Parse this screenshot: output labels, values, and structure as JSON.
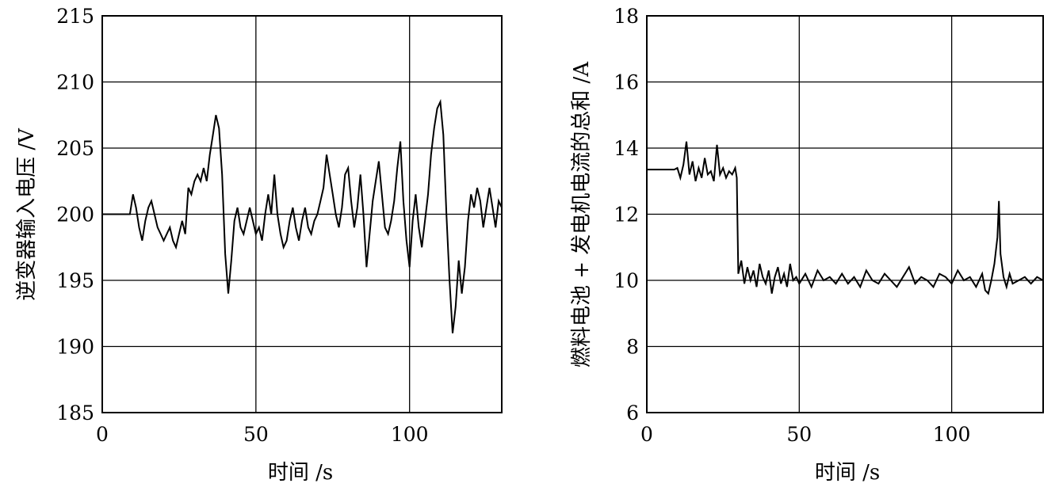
{
  "chart_data": [
    {
      "type": "line",
      "xlabel": "时间 /s",
      "ylabel": "逆变器输入电压 /V",
      "xlim": [
        0,
        130
      ],
      "ylim": [
        185,
        215
      ],
      "xticks": [
        0,
        50,
        100
      ],
      "yticks": [
        185,
        190,
        195,
        200,
        205,
        210,
        215
      ],
      "grid": true,
      "series": [
        {
          "x": [
            0,
            9,
            10,
            11,
            12,
            13,
            14,
            15,
            16,
            17,
            18,
            19,
            20,
            21,
            22,
            23,
            24,
            25,
            26,
            27,
            28,
            29,
            30,
            31,
            32,
            33,
            34,
            35,
            36,
            37,
            38,
            39,
            40,
            41,
            42,
            43,
            44,
            45,
            46,
            47,
            48,
            49,
            50,
            51,
            52,
            53,
            54,
            55,
            56,
            57,
            58,
            59,
            60,
            61,
            62,
            63,
            64,
            65,
            66,
            67,
            68,
            69,
            70,
            71,
            72,
            73,
            74,
            75,
            76,
            77,
            78,
            79,
            80,
            81,
            82,
            83,
            84,
            85,
            86,
            87,
            88,
            89,
            90,
            91,
            92,
            93,
            94,
            95,
            96,
            97,
            98,
            99,
            100,
            101,
            102,
            103,
            104,
            105,
            106,
            107,
            108,
            109,
            110,
            111,
            112,
            113,
            114,
            115,
            116,
            117,
            118,
            119,
            120,
            121,
            122,
            123,
            124,
            125,
            126,
            127,
            128,
            129,
            130
          ],
          "y": [
            200,
            200,
            201.5,
            200.5,
            199,
            198,
            199.5,
            200.5,
            201,
            200,
            199,
            198.5,
            198,
            198.5,
            199,
            198,
            197.5,
            198.5,
            199.5,
            198.5,
            202,
            201.5,
            202.5,
            203,
            202.5,
            203.5,
            202.5,
            204.5,
            206,
            207.5,
            206.5,
            203,
            197,
            194,
            196.5,
            199.5,
            200.5,
            199,
            198.5,
            199.5,
            200.5,
            199.5,
            198.5,
            199,
            198,
            200,
            201.5,
            200,
            203,
            200,
            198.5,
            197.5,
            198,
            199.5,
            200.5,
            199,
            198,
            199.5,
            200.5,
            199,
            198.5,
            199.5,
            200,
            201,
            202,
            204.5,
            203,
            201.5,
            200,
            199,
            200.5,
            203,
            203.5,
            201,
            199,
            200.5,
            203,
            200,
            196,
            198.5,
            201,
            202.5,
            204,
            201.5,
            199,
            198.5,
            199.5,
            201,
            203.5,
            205.5,
            201,
            198,
            196,
            199.5,
            201.5,
            199,
            197.5,
            199.5,
            201.5,
            204.5,
            206.5,
            208,
            208.5,
            206,
            200,
            195,
            191,
            193,
            196.5,
            194,
            196,
            199.5,
            201.5,
            200.5,
            202,
            201,
            199,
            200.5,
            202,
            200.5,
            199,
            201,
            200.5
          ]
        }
      ]
    },
    {
      "type": "line",
      "xlabel": "时间 /s",
      "ylabel": "燃料电池 + 发电机电流的总和 /A",
      "xlim": [
        0,
        130
      ],
      "ylim": [
        6,
        18
      ],
      "xticks": [
        0,
        50,
        100
      ],
      "yticks": [
        6,
        8,
        10,
        12,
        14,
        16,
        18
      ],
      "grid": true,
      "series": [
        {
          "x": [
            0,
            9,
            10,
            11,
            12,
            13,
            14,
            15,
            16,
            17,
            18,
            19,
            20,
            21,
            22,
            23,
            24,
            25,
            26,
            27,
            28,
            29,
            29.5,
            30,
            31,
            32,
            33,
            34,
            35,
            36,
            37,
            38,
            39,
            40,
            41,
            42,
            43,
            44,
            45,
            46,
            47,
            48,
            49,
            50,
            52,
            54,
            56,
            58,
            60,
            62,
            64,
            66,
            68,
            70,
            72,
            74,
            76,
            78,
            80,
            82,
            84,
            86,
            88,
            90,
            92,
            94,
            96,
            98,
            100,
            102,
            104,
            106,
            108,
            110,
            111,
            112,
            113,
            114,
            115,
            115.5,
            116,
            117,
            118,
            119,
            120,
            122,
            124,
            126,
            128,
            130
          ],
          "y": [
            13.35,
            13.35,
            13.4,
            13.1,
            13.5,
            14.2,
            13.2,
            13.6,
            13.0,
            13.4,
            13.1,
            13.7,
            13.2,
            13.3,
            13.0,
            14.1,
            13.2,
            13.4,
            13.1,
            13.3,
            13.2,
            13.4,
            13.1,
            10.2,
            10.6,
            9.9,
            10.4,
            10.0,
            10.3,
            9.8,
            10.5,
            10.1,
            9.9,
            10.3,
            9.6,
            10.1,
            10.4,
            9.9,
            10.2,
            9.8,
            10.5,
            10.0,
            10.1,
            9.9,
            10.2,
            9.8,
            10.3,
            10.0,
            10.1,
            9.9,
            10.2,
            9.9,
            10.1,
            9.8,
            10.3,
            10.0,
            9.9,
            10.2,
            10.0,
            9.8,
            10.1,
            10.4,
            9.9,
            10.1,
            10.0,
            9.8,
            10.2,
            10.1,
            9.9,
            10.3,
            10.0,
            10.1,
            9.8,
            10.2,
            9.7,
            9.6,
            10.0,
            10.5,
            11.3,
            12.4,
            10.8,
            10.1,
            9.8,
            10.2,
            9.9,
            10.0,
            10.1,
            9.9,
            10.1,
            10.0
          ]
        }
      ]
    }
  ]
}
